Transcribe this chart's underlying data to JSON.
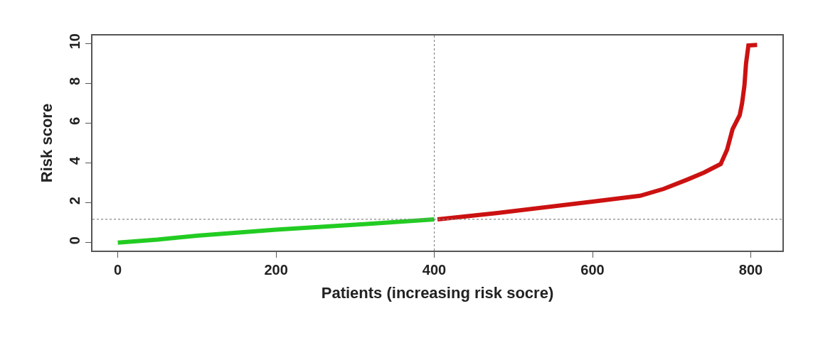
{
  "chart_data": {
    "type": "line",
    "xlabel": "Patients (increasing risk socre)",
    "ylabel": "Risk score",
    "xlim": [
      -32,
      840
    ],
    "ylim": [
      -0.4,
      10.4
    ],
    "xticks": [
      0,
      200,
      400,
      600,
      800
    ],
    "yticks": [
      0,
      2,
      4,
      6,
      8,
      10
    ],
    "line_style": "solid",
    "marker": "none",
    "series": [
      {
        "color": "#22cc22",
        "x": [
          0,
          50,
          100,
          200,
          300,
          400
        ],
        "values": [
          0.0,
          0.15,
          0.35,
          0.65,
          0.9,
          1.17
        ]
      },
      {
        "color": "#cc1111",
        "x": [
          404,
          480,
          570,
          600,
          660,
          690,
          720,
          741,
          762,
          770,
          777,
          786,
          789,
          792,
          794,
          797,
          808
        ],
        "values": [
          1.17,
          1.49,
          1.92,
          2.06,
          2.35,
          2.7,
          3.17,
          3.52,
          3.95,
          4.66,
          5.7,
          6.4,
          7.0,
          7.9,
          9.0,
          9.9,
          9.93
        ]
      }
    ],
    "ref_lines": [
      {
        "axis": "x",
        "value": 400,
        "color": "#888888",
        "line_style": "dotted"
      },
      {
        "axis": "y",
        "value": 1.17,
        "color": "#888888",
        "line_style": "dotted"
      }
    ]
  }
}
